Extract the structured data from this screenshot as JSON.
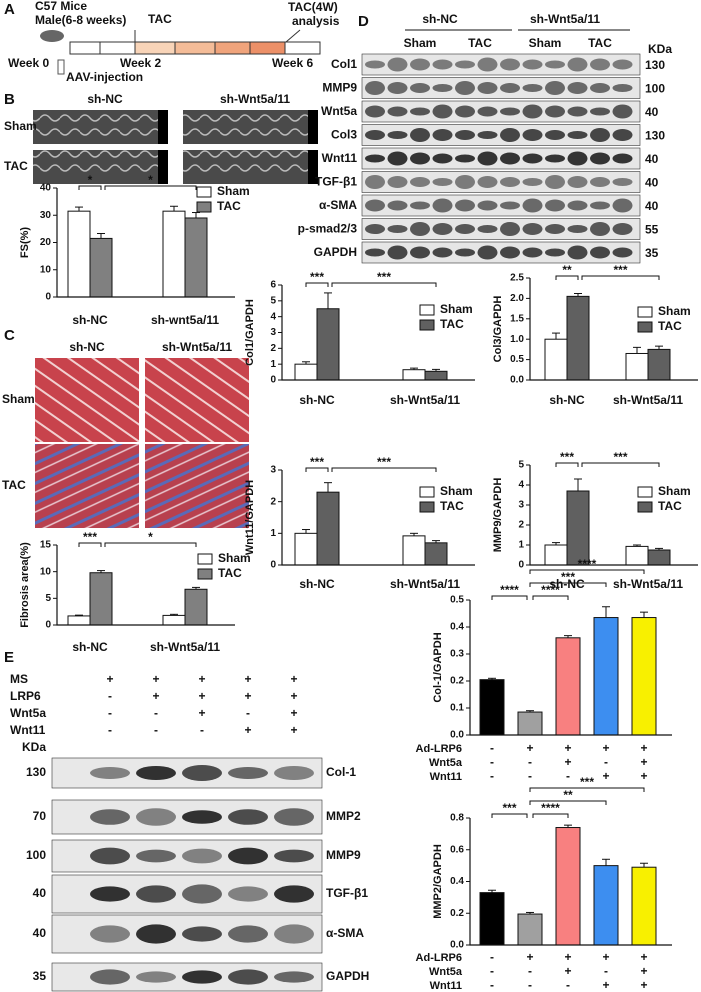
{
  "panels": [
    "A",
    "B",
    "C",
    "D",
    "E"
  ],
  "timeline": {
    "mice": "C57 Mice",
    "sex_age": "Male(6-8 weeks)",
    "tac": "TAC",
    "analysis_1": "TAC(4W)",
    "analysis_2": "analysis",
    "week0": "Week 0",
    "week2": "Week 2",
    "week6": "Week 6",
    "injection": "AAV-injection"
  },
  "echo": {
    "columns": [
      "sh-NC",
      "sh-Wnt5a/11"
    ],
    "rows": [
      "Sham",
      "TAC"
    ]
  },
  "histology": {
    "columns": [
      "sh-NC",
      "sh-Wnt5a/11"
    ],
    "rows": [
      "Sham",
      "TAC"
    ]
  },
  "blot_d": {
    "groups": [
      "sh-NC",
      "sh-Wnt5a/11"
    ],
    "conditions": [
      "Sham",
      "TAC",
      "Sham",
      "TAC"
    ],
    "unit": "KDa",
    "rows": [
      {
        "label": "Col1",
        "kda": 130
      },
      {
        "label": "MMP9",
        "kda": 100
      },
      {
        "label": "Wnt5a",
        "kda": 40
      },
      {
        "label": "Col3",
        "kda": 130
      },
      {
        "label": "Wnt11",
        "kda": 40
      },
      {
        "label": "TGF-β1",
        "kda": 40
      },
      {
        "label": "α-SMA",
        "kda": 40
      },
      {
        "label": "p-smad2/3",
        "kda": 55
      },
      {
        "label": "GAPDH",
        "kda": 35
      }
    ]
  },
  "blot_e": {
    "treatments": [
      {
        "name": "MS",
        "signs": [
          "+",
          "+",
          "+",
          "+",
          "+"
        ]
      },
      {
        "name": "LRP6",
        "signs": [
          "-",
          "+",
          "+",
          "+",
          "+"
        ]
      },
      {
        "name": "Wnt5a",
        "signs": [
          "-",
          "-",
          "+",
          "-",
          "+"
        ]
      },
      {
        "name": "Wnt11",
        "signs": [
          "-",
          "-",
          "-",
          "+",
          "+"
        ]
      }
    ],
    "unit": "KDa",
    "rows": [
      {
        "label": "Col-1",
        "kda": 130
      },
      {
        "label": "MMP2",
        "kda": 70
      },
      {
        "label": "MMP9",
        "kda": 100
      },
      {
        "label": "TGF-β1",
        "kda": 40
      },
      {
        "label": "α-SMA",
        "kda": 40
      },
      {
        "label": "GAPDH",
        "kda": 35
      }
    ]
  },
  "chart_data": [
    {
      "type": "grouped_bar",
      "y_label": "FS(%)",
      "categories": [
        "sh-NC",
        "sh-wnt5a/11"
      ],
      "series": [
        {
          "name": "Sham",
          "color": "#ffffff",
          "values": [
            31.5,
            31.5
          ],
          "errors": [
            1.5,
            1.8
          ]
        },
        {
          "name": "TAC",
          "color": "#808080",
          "values": [
            21.5,
            29
          ],
          "errors": [
            1.8,
            2
          ]
        }
      ],
      "ylim": [
        0,
        40
      ],
      "yticks": [
        0,
        10,
        20,
        30,
        40
      ],
      "significance": [
        "*",
        "*"
      ]
    },
    {
      "type": "grouped_bar",
      "y_label": "Col1/GAPDH",
      "categories": [
        "sh-NC",
        "sh-Wnt5a/11"
      ],
      "series": [
        {
          "name": "Sham",
          "color": "#ffffff",
          "values": [
            1.0,
            0.65
          ],
          "errors": [
            0.15,
            0.1
          ]
        },
        {
          "name": "TAC",
          "color": "#606060",
          "values": [
            4.5,
            0.55
          ],
          "errors": [
            1.0,
            0.12
          ]
        }
      ],
      "ylim": [
        0,
        6
      ],
      "yticks": [
        0,
        1,
        2,
        3,
        4,
        5,
        6
      ],
      "significance": [
        "***",
        "***"
      ]
    },
    {
      "type": "grouped_bar",
      "y_label": "Col3/GAPDH",
      "categories": [
        "sh-NC",
        "sh-Wnt5a/11"
      ],
      "series": [
        {
          "name": "Sham",
          "color": "#ffffff",
          "values": [
            1.0,
            0.65
          ],
          "errors": [
            0.15,
            0.15
          ]
        },
        {
          "name": "TAC",
          "color": "#606060",
          "values": [
            2.05,
            0.75
          ],
          "errors": [
            0.07,
            0.08
          ]
        }
      ],
      "ylim": [
        0,
        2.5
      ],
      "yticks": [
        {
          "value": 0,
          "label": "0.0"
        },
        0.5,
        {
          "value": 1,
          "label": "1.0"
        },
        1.5,
        {
          "value": 2,
          "label": "2.0"
        },
        2.5
      ],
      "significance": [
        "**",
        "***"
      ]
    },
    {
      "type": "grouped_bar",
      "y_label": "Wnt11/GAPDH",
      "categories": [
        "sh-NC",
        "sh-Wnt5a/11"
      ],
      "series": [
        {
          "name": "Sham",
          "color": "#ffffff",
          "values": [
            1.0,
            0.92
          ],
          "errors": [
            0.12,
            0.08
          ]
        },
        {
          "name": "TAC",
          "color": "#606060",
          "values": [
            2.3,
            0.7
          ],
          "errors": [
            0.3,
            0.07
          ]
        }
      ],
      "ylim": [
        0,
        3
      ],
      "yticks": [
        0,
        1,
        2,
        3
      ],
      "significance": [
        "***",
        "***"
      ]
    },
    {
      "type": "grouped_bar",
      "y_label": "MMP9/GAPDH",
      "categories": [
        "sh-NC",
        "sh-Wnt5a/11"
      ],
      "series": [
        {
          "name": "Sham",
          "color": "#ffffff",
          "values": [
            1.0,
            0.93
          ],
          "errors": [
            0.12,
            0.07
          ]
        },
        {
          "name": "TAC",
          "color": "#606060",
          "values": [
            3.7,
            0.75
          ],
          "errors": [
            0.6,
            0.08
          ]
        }
      ],
      "ylim": [
        0,
        5
      ],
      "yticks": [
        0,
        1,
        2,
        3,
        4,
        5
      ],
      "significance": [
        "***",
        "***"
      ]
    },
    {
      "type": "grouped_bar",
      "y_label": "Fibrosis area(%)",
      "categories": [
        "sh-NC",
        "sh-Wnt5a/11"
      ],
      "series": [
        {
          "name": "Sham",
          "color": "#ffffff",
          "values": [
            1.7,
            1.8
          ],
          "errors": [
            0.15,
            0.2
          ]
        },
        {
          "name": "TAC",
          "color": "#808080",
          "values": [
            9.8,
            6.7
          ],
          "errors": [
            0.4,
            0.35
          ]
        }
      ],
      "ylim": [
        0,
        15
      ],
      "yticks": [
        0,
        5,
        10,
        15
      ],
      "significance": [
        "***",
        "*"
      ]
    },
    {
      "type": "bar",
      "y_label": "Col-1/GAPDH",
      "values": [
        0.205,
        0.085,
        0.36,
        0.435,
        0.435
      ],
      "errors": [
        0.005,
        0.005,
        0.008,
        0.04,
        0.02
      ],
      "colors": [
        "#000000",
        "#a0a0a0",
        "#f88080",
        "#3d8ef0",
        "#f8f000"
      ],
      "conditions": [
        {
          "name": "Ad-LRP6",
          "signs": [
            "-",
            "+",
            "+",
            "+",
            "+"
          ]
        },
        {
          "name": "Wnt5a",
          "signs": [
            "-",
            "-",
            "+",
            "-",
            "+"
          ]
        },
        {
          "name": "Wnt11",
          "signs": [
            "-",
            "-",
            "-",
            "+",
            "+"
          ]
        }
      ],
      "ylim": [
        0,
        0.5
      ],
      "yticks": [
        {
          "value": 0,
          "label": "0.0"
        },
        0.1,
        0.2,
        0.3,
        0.4,
        0.5
      ],
      "significance": [
        "****",
        "****",
        "***",
        "****"
      ]
    },
    {
      "type": "bar",
      "y_label": "MMP2/GAPDH",
      "values": [
        0.33,
        0.195,
        0.74,
        0.5,
        0.49
      ],
      "errors": [
        0.015,
        0.01,
        0.015,
        0.04,
        0.025
      ],
      "colors": [
        "#000000",
        "#a0a0a0",
        "#f88080",
        "#3d8ef0",
        "#f8f000"
      ],
      "conditions": [
        {
          "name": "Ad-LRP6",
          "signs": [
            "-",
            "+",
            "+",
            "+",
            "+"
          ]
        },
        {
          "name": "Wnt5a",
          "signs": [
            "-",
            "-",
            "+",
            "-",
            "+"
          ]
        },
        {
          "name": "Wnt11",
          "signs": [
            "-",
            "-",
            "-",
            "+",
            "+"
          ]
        }
      ],
      "ylim": [
        0,
        0.8
      ],
      "yticks": [
        {
          "value": 0,
          "label": "0.0"
        },
        0.2,
        0.4,
        0.6,
        0.8
      ],
      "significance": [
        "***",
        "****",
        "**",
        "***"
      ]
    }
  ]
}
